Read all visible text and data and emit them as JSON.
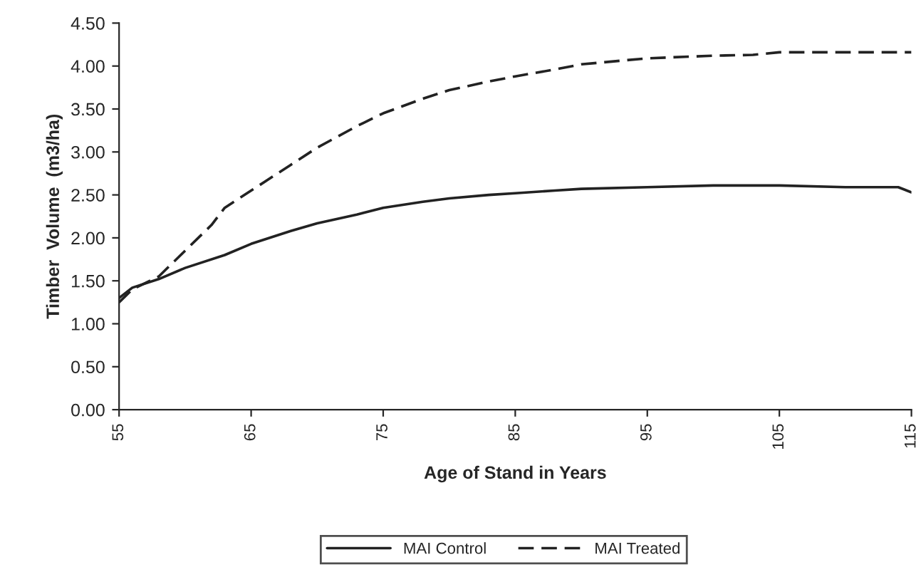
{
  "chart_data": {
    "type": "line",
    "xlabel": "Age of Stand in Years",
    "ylabel": "Timber  Volume  (m3/ha)",
    "xlim": [
      55,
      115
    ],
    "xticks": [
      55,
      65,
      75,
      85,
      95,
      105,
      115
    ],
    "ylim": [
      0,
      4.5
    ],
    "yticks": [
      {
        "value": 0,
        "label": "0.00"
      },
      {
        "value": 0.5,
        "label": "0.50"
      },
      {
        "value": 1,
        "label": "1.00"
      },
      {
        "value": 1.5,
        "label": "1.50"
      },
      {
        "value": 2,
        "label": "2.00"
      },
      {
        "value": 2.5,
        "label": "2.50"
      },
      {
        "value": 3,
        "label": "3.00"
      },
      {
        "value": 3.5,
        "label": "3.50"
      },
      {
        "value": 4,
        "label": "4.00"
      },
      {
        "value": 4.5,
        "label": "4.50"
      }
    ],
    "grid": false,
    "legend": "bottom",
    "marker": "none",
    "series": [
      {
        "name": "MAI Control",
        "color": "#222222",
        "line_style": "solid",
        "x": [
          55,
          56,
          58,
          60,
          63,
          65,
          68,
          70,
          73,
          75,
          78,
          80,
          83,
          85,
          88,
          90,
          95,
          100,
          105,
          110,
          114,
          115
        ],
        "values": [
          1.3,
          1.42,
          1.52,
          1.65,
          1.8,
          1.93,
          2.08,
          2.17,
          2.27,
          2.35,
          2.42,
          2.46,
          2.5,
          2.52,
          2.55,
          2.57,
          2.59,
          2.61,
          2.61,
          2.59,
          2.59,
          2.53
        ]
      },
      {
        "name": "MAI Treated",
        "color": "#222222",
        "line_style": "dashed",
        "x": [
          55,
          56,
          58,
          60,
          62,
          63,
          65,
          68,
          70,
          73,
          75,
          78,
          80,
          83,
          85,
          88,
          90,
          95,
          100,
          103,
          105,
          110,
          115
        ],
        "values": [
          1.25,
          1.4,
          1.55,
          1.85,
          2.15,
          2.35,
          2.55,
          2.85,
          3.05,
          3.3,
          3.45,
          3.62,
          3.72,
          3.82,
          3.88,
          3.96,
          4.02,
          4.09,
          4.12,
          4.13,
          4.16,
          4.16,
          4.16
        ]
      }
    ]
  }
}
